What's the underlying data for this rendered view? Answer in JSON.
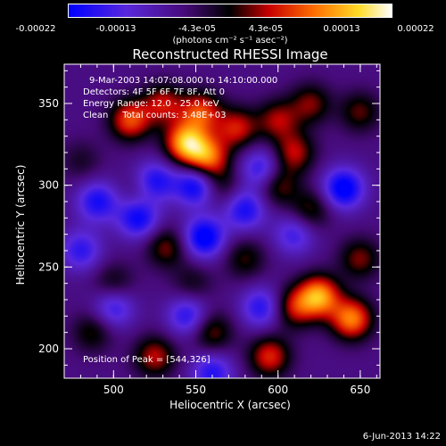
{
  "colorbar": {
    "ticks": [
      "-0.00022",
      "-0.00013",
      "-4.3e-05",
      "4.3e-05",
      "0.00013",
      "0.00022"
    ],
    "units": "(photons cm⁻² s⁻¹ asec⁻²)",
    "min": -0.00022,
    "max": 0.00022
  },
  "chart_data": {
    "type": "heatmap",
    "title": "Reconstructed RHESSI Image",
    "xlabel": "Heliocentric X (arcsec)",
    "ylabel": "Heliocentric Y (arcsec)",
    "xlim": [
      470,
      662
    ],
    "ylim": [
      182,
      374
    ],
    "xticks": [
      500,
      550,
      600,
      650
    ],
    "yticks": [
      200,
      250,
      300,
      350
    ],
    "blobs": [
      {
        "x": 544,
        "y": 326,
        "value": 0.00022
      },
      {
        "x": 557,
        "y": 317,
        "value": 0.00018
      },
      {
        "x": 553,
        "y": 345,
        "value": 0.00015
      },
      {
        "x": 510,
        "y": 340,
        "value": 0.00016
      },
      {
        "x": 530,
        "y": 350,
        "value": 0.00012
      },
      {
        "x": 575,
        "y": 335,
        "value": 0.00013
      },
      {
        "x": 600,
        "y": 340,
        "value": 0.00011
      },
      {
        "x": 620,
        "y": 350,
        "value": 0.0001
      },
      {
        "x": 610,
        "y": 320,
        "value": 0.00012
      },
      {
        "x": 650,
        "y": 345,
        "value": 9e-05
      },
      {
        "x": 600,
        "y": 300,
        "value": 0.0001
      },
      {
        "x": 565,
        "y": 300,
        "value": 7e-05
      },
      {
        "x": 620,
        "y": 285,
        "value": 9e-05
      },
      {
        "x": 625,
        "y": 232,
        "value": 0.00021
      },
      {
        "x": 645,
        "y": 218,
        "value": 0.00019
      },
      {
        "x": 610,
        "y": 225,
        "value": 0.00012
      },
      {
        "x": 650,
        "y": 255,
        "value": 0.0001
      },
      {
        "x": 580,
        "y": 255,
        "value": 8e-05
      },
      {
        "x": 532,
        "y": 262,
        "value": 0.0001
      },
      {
        "x": 500,
        "y": 240,
        "value": 7e-05
      },
      {
        "x": 487,
        "y": 210,
        "value": 8e-05
      },
      {
        "x": 525,
        "y": 195,
        "value": 0.00012
      },
      {
        "x": 560,
        "y": 210,
        "value": 0.0001
      },
      {
        "x": 595,
        "y": 195,
        "value": 0.00014
      },
      {
        "x": 480,
        "y": 315,
        "value": 5e-05
      },
      {
        "x": 548,
        "y": 240,
        "value": 6e-05
      },
      {
        "x": 517,
        "y": 295,
        "value": 5e-05
      },
      {
        "x": 550,
        "y": 300,
        "value": -0.00016
      },
      {
        "x": 640,
        "y": 298,
        "value": -0.00017
      },
      {
        "x": 555,
        "y": 268,
        "value": -0.00017
      },
      {
        "x": 515,
        "y": 280,
        "value": -0.00015
      },
      {
        "x": 525,
        "y": 302,
        "value": -0.00014
      },
      {
        "x": 490,
        "y": 290,
        "value": -0.00013
      },
      {
        "x": 580,
        "y": 285,
        "value": -0.00013
      },
      {
        "x": 590,
        "y": 310,
        "value": -0.00012
      },
      {
        "x": 610,
        "y": 270,
        "value": -0.0001
      },
      {
        "x": 590,
        "y": 225,
        "value": -0.00012
      },
      {
        "x": 480,
        "y": 260,
        "value": -0.00011
      },
      {
        "x": 500,
        "y": 225,
        "value": -0.00011
      },
      {
        "x": 560,
        "y": 185,
        "value": -0.00012
      },
      {
        "x": 545,
        "y": 220,
        "value": -0.00012
      }
    ],
    "annotations": {
      "time_range": "9-Mar-2003 14:07:08.000 to 14:10:00.000",
      "detectors": "Detectors: 4F 5F 6F 7F 8F, Att 0",
      "energy": "Energy Range: 12.0 - 25.0 keV",
      "method": "Clean     Total counts: 3.48E+03",
      "peak": "Position of Peak = [544,326]"
    }
  },
  "footer": {
    "date": "6-Jun-2013 14:22"
  }
}
